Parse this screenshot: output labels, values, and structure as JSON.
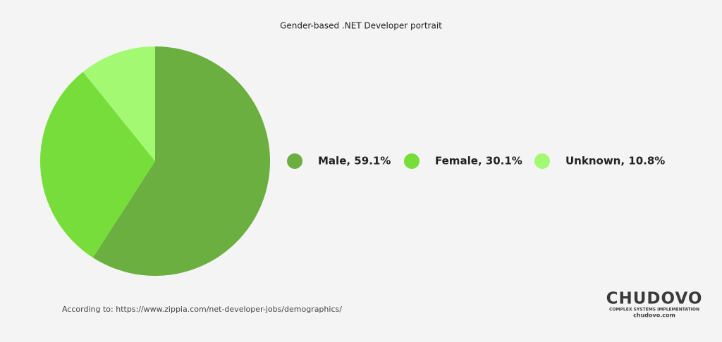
{
  "chart_data": {
    "type": "pie",
    "title": "Gender-based .NET Developer portrait",
    "categories": [
      "Male, 59.1%",
      "Female, 30.1%",
      "Unknown, 10.8%"
    ],
    "values": [
      59.1,
      30.1,
      10.8
    ],
    "colors": [
      "#6aaf3f",
      "#77dd3a",
      "#a4f972"
    ],
    "legend": "right",
    "source": "According to: https://www.zippia.com/net-developer-jobs/demographics/",
    "logo": {
      "name": "CHUDOVO",
      "tagline": "COMPLEX SYSTEMS IMPLEMENTATION",
      "url": "chudovo.com"
    }
  }
}
